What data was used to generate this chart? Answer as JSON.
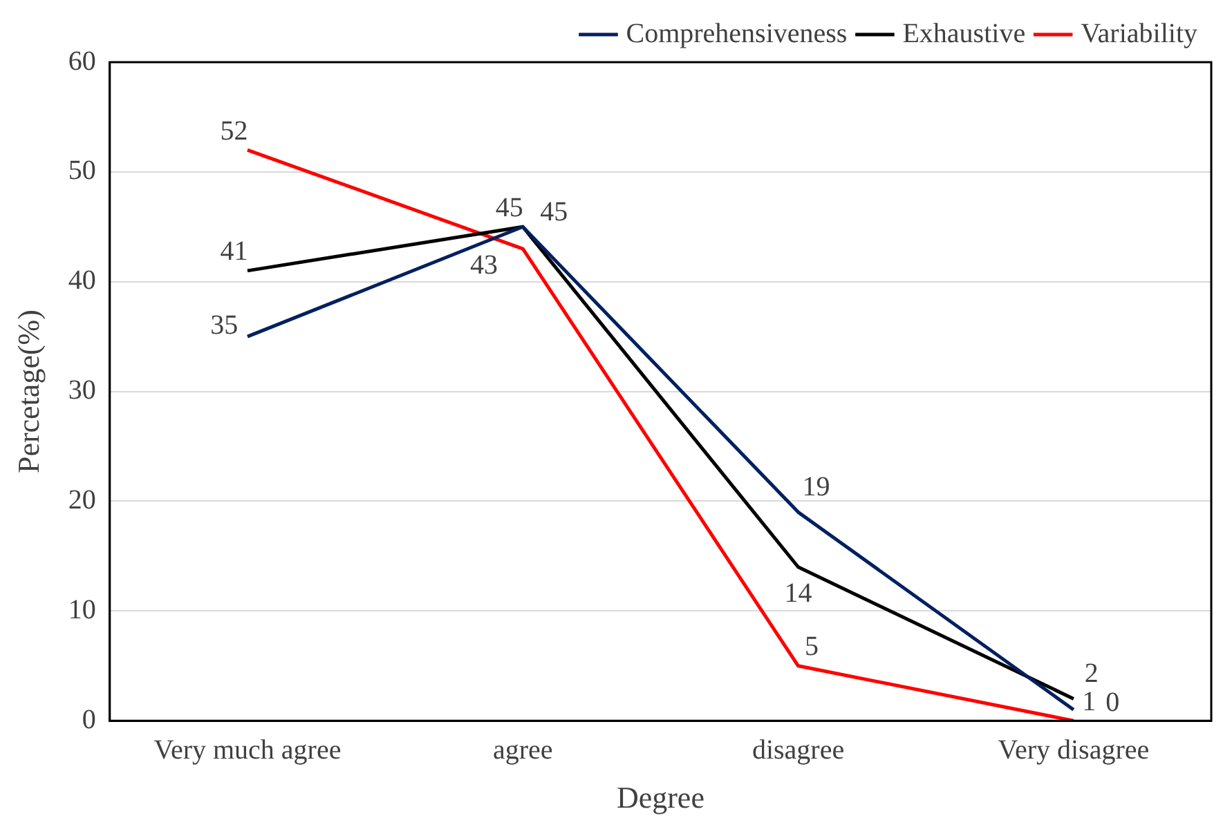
{
  "chart_data": {
    "type": "line",
    "xlabel": "Degree",
    "ylabel": "Percetage(%)",
    "categories": [
      "Very much agree",
      "agree",
      "disagree",
      "Very disagree"
    ],
    "series": [
      {
        "name": "Comprehensiveness",
        "color": "#002060",
        "values": [
          35,
          45,
          19,
          1
        ]
      },
      {
        "name": "Exhaustive",
        "color": "#000000",
        "values": [
          41,
          45,
          14,
          2
        ]
      },
      {
        "name": "Variability",
        "color": "#ff0000",
        "values": [
          52,
          43,
          5,
          0
        ]
      }
    ],
    "ylim": [
      0,
      60
    ],
    "yticks": [
      0,
      10,
      20,
      30,
      40,
      50,
      60
    ],
    "grid": "y",
    "legend": "top right",
    "marker": "none",
    "line_style": "solid",
    "data_labels": true
  }
}
